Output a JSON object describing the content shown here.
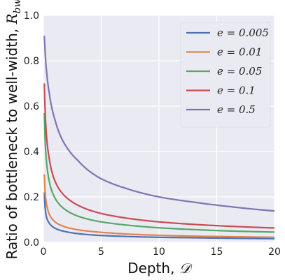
{
  "chart_data": {
    "type": "line",
    "title": "",
    "xlabel": "Depth, ",
    "xlabel_math": "𝒟",
    "ylabel": "Ratio of bottleneck to well-width, ",
    "ylabel_math_main": "R",
    "ylabel_math_sub": "bw",
    "xlim": [
      0,
      20
    ],
    "ylim": [
      0,
      1.0
    ],
    "xticks": [
      "0",
      "5",
      "10",
      "15",
      "20"
    ],
    "yticks": [
      "0.0",
      "0.2",
      "0.4",
      "0.6",
      "0.8",
      "1.0"
    ],
    "grid": true,
    "legend_position": "top-right",
    "series": [
      {
        "name": "e = 0.005",
        "e": 0.005,
        "color": "#4c72b0",
        "x": [
          0.08,
          0.15,
          0.3,
          0.5,
          1,
          2,
          3,
          5,
          7,
          10,
          13,
          16,
          20
        ],
        "y": [
          0.22,
          0.15,
          0.105,
          0.085,
          0.062,
          0.046,
          0.038,
          0.03,
          0.026,
          0.022,
          0.02,
          0.018,
          0.016
        ]
      },
      {
        "name": "e = 0.01",
        "e": 0.01,
        "color": "#dd8452",
        "x": [
          0.08,
          0.15,
          0.3,
          0.5,
          1,
          2,
          3,
          5,
          7,
          10,
          13,
          16,
          20
        ],
        "y": [
          0.3,
          0.22,
          0.16,
          0.125,
          0.09,
          0.066,
          0.055,
          0.044,
          0.037,
          0.031,
          0.027,
          0.025,
          0.022
        ]
      },
      {
        "name": "e = 0.05",
        "e": 0.05,
        "color": "#55a868",
        "x": [
          0.08,
          0.15,
          0.3,
          0.5,
          1,
          2,
          3,
          5,
          7,
          10,
          13,
          16,
          20
        ],
        "y": [
          0.57,
          0.45,
          0.34,
          0.27,
          0.195,
          0.14,
          0.115,
          0.09,
          0.077,
          0.064,
          0.056,
          0.05,
          0.045
        ]
      },
      {
        "name": "e = 0.1",
        "e": 0.1,
        "color": "#c44e52",
        "x": [
          0.08,
          0.15,
          0.3,
          0.5,
          1,
          2,
          3,
          5,
          7,
          10,
          13,
          16,
          20
        ],
        "y": [
          0.7,
          0.58,
          0.45,
          0.37,
          0.27,
          0.197,
          0.163,
          0.127,
          0.108,
          0.09,
          0.079,
          0.071,
          0.063
        ]
      },
      {
        "name": "e = 0.5",
        "e": 0.5,
        "color": "#8172b2",
        "x": [
          0.08,
          0.15,
          0.3,
          0.5,
          1,
          2,
          3,
          5,
          7,
          10,
          13,
          16,
          20
        ],
        "y": [
          0.91,
          0.84,
          0.74,
          0.66,
          0.54,
          0.42,
          0.36,
          0.28,
          0.24,
          0.2,
          0.177,
          0.158,
          0.138
        ]
      }
    ]
  }
}
